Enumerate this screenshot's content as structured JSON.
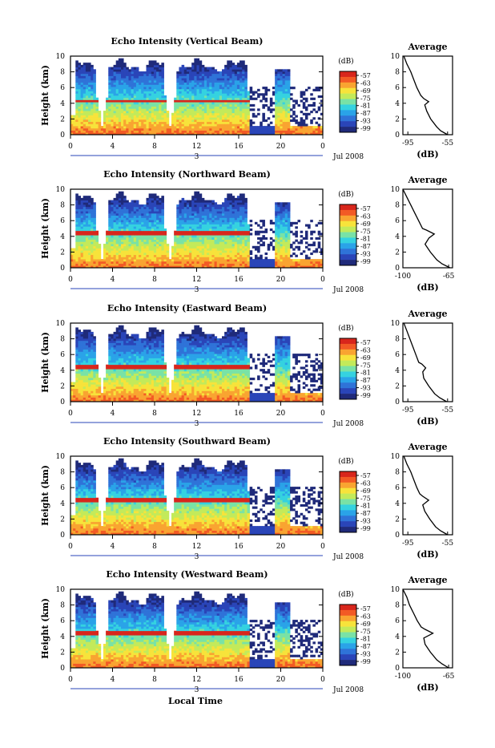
{
  "x_axis_label": "Local Time",
  "height_axis_label": "Height (km)",
  "date_label": "Jul 2008",
  "day_label": "3",
  "colorbar_unit": "(dB)",
  "colorbar_ticks": [
    "-57",
    "-63",
    "-69",
    "-75",
    "-81",
    "-87",
    "-93",
    "-99"
  ],
  "avg_title": "Average",
  "avg_xlabel": "(dB)",
  "hour_ticks": [
    "0",
    "4",
    "8",
    "12",
    "16",
    "20",
    "0"
  ],
  "height_ticks": [
    "0",
    "2",
    "4",
    "6",
    "8",
    "10"
  ],
  "colors": {
    "colormap": [
      "#1f2a7a",
      "#2a45b8",
      "#2f73d8",
      "#2aa3e8",
      "#35d2e0",
      "#79e2a6",
      "#c3ea5a",
      "#f7e33b",
      "#f9a431",
      "#f25a25",
      "#d8261c"
    ],
    "profile_line": "#000000"
  },
  "chart_data": [
    {
      "type": "heatmap",
      "title": "Echo Intensity (Vertical Beam)",
      "x": [
        0,
        24
      ],
      "x_unit": "hour",
      "ylim": [
        0,
        10
      ],
      "zlim": [
        -99,
        -57
      ],
      "features": {
        "bright_band_km": 4.3,
        "cloud_gaps_hour": [
          3,
          9.5,
          17.5,
          20.5
        ],
        "clear_after_hour": 17
      },
      "average_profile": {
        "xticks": [
          "-95",
          "-55"
        ],
        "xlim": [
          -100,
          -50
        ],
        "height_km": [
          0,
          0.5,
          1,
          2,
          3,
          3.8,
          4.2,
          4.6,
          5,
          6,
          7,
          8,
          9,
          10
        ],
        "db": [
          -55,
          -62,
          -66,
          -72,
          -76,
          -78,
          -74,
          -79,
          -82,
          -86,
          -89,
          -92,
          -96,
          -99
        ]
      }
    },
    {
      "type": "heatmap",
      "title": "Echo Intensity (Northward Beam)",
      "x": [
        0,
        24
      ],
      "x_unit": "hour",
      "ylim": [
        0,
        10
      ],
      "zlim": [
        -99,
        -57
      ],
      "features": {
        "bright_band_km": 4.5,
        "cloud_gaps_hour": [
          3,
          9.5,
          17.5,
          20.5
        ],
        "clear_after_hour": 17
      },
      "average_profile": {
        "xticks": [
          "-100",
          "-65"
        ],
        "xlim": [
          -100,
          -62
        ],
        "height_km": [
          0,
          0.5,
          1,
          2,
          3,
          3.8,
          4.3,
          4.8,
          5,
          6,
          7,
          8,
          9,
          10
        ],
        "db": [
          -64,
          -70,
          -74,
          -79,
          -83,
          -80,
          -76,
          -82,
          -85,
          -88,
          -91,
          -94,
          -97,
          -100
        ]
      }
    },
    {
      "type": "heatmap",
      "title": "Echo Intensity (Eastward Beam)",
      "x": [
        0,
        24
      ],
      "x_unit": "hour",
      "ylim": [
        0,
        10
      ],
      "zlim": [
        -99,
        -57
      ],
      "features": {
        "bright_band_km": 4.4,
        "cloud_gaps_hour": [
          3,
          9.5,
          17.5,
          20.5
        ],
        "clear_after_hour": 17
      },
      "average_profile": {
        "xticks": [
          "-95",
          "-55"
        ],
        "xlim": [
          -100,
          -50
        ],
        "height_km": [
          0,
          0.5,
          1,
          2,
          3,
          3.8,
          4.3,
          4.8,
          5,
          6,
          7,
          8,
          9,
          10
        ],
        "db": [
          -56,
          -63,
          -68,
          -74,
          -79,
          -80,
          -77,
          -81,
          -84,
          -87,
          -90,
          -93,
          -96,
          -99
        ]
      }
    },
    {
      "type": "heatmap",
      "title": "Echo Intensity (Southward Beam)",
      "x": [
        0,
        24
      ],
      "x_unit": "hour",
      "ylim": [
        0,
        10
      ],
      "zlim": [
        -99,
        -57
      ],
      "features": {
        "bright_band_km": 4.5,
        "cloud_gaps_hour": [
          3,
          9.5,
          17.5,
          20.5
        ],
        "clear_after_hour": 17
      },
      "average_profile": {
        "xticks": [
          "-95",
          "-55"
        ],
        "xlim": [
          -100,
          -50
        ],
        "height_km": [
          0,
          0.5,
          1,
          2,
          3,
          3.8,
          4.4,
          4.9,
          5.2,
          6,
          7,
          8,
          9,
          10
        ],
        "db": [
          -55,
          -62,
          -67,
          -73,
          -78,
          -80,
          -74,
          -80,
          -83,
          -86,
          -89,
          -92,
          -96,
          -99
        ]
      }
    },
    {
      "type": "heatmap",
      "title": "Echo Intensity (Westward Beam)",
      "x": [
        0,
        24
      ],
      "x_unit": "hour",
      "ylim": [
        0,
        10
      ],
      "zlim": [
        -99,
        -57
      ],
      "features": {
        "bright_band_km": 4.5,
        "cloud_gaps_hour": [
          3,
          9.5,
          17.5,
          20.5
        ],
        "clear_after_hour": 17
      },
      "average_profile": {
        "xticks": [
          "-100",
          "-65"
        ],
        "xlim": [
          -100,
          -62
        ],
        "height_km": [
          0,
          0.5,
          1,
          2,
          3,
          3.8,
          4.4,
          4.9,
          5.2,
          6,
          7,
          8,
          9,
          10
        ],
        "db": [
          -65,
          -70,
          -74,
          -79,
          -83,
          -84,
          -77,
          -83,
          -86,
          -89,
          -92,
          -95,
          -97,
          -100
        ]
      }
    }
  ]
}
